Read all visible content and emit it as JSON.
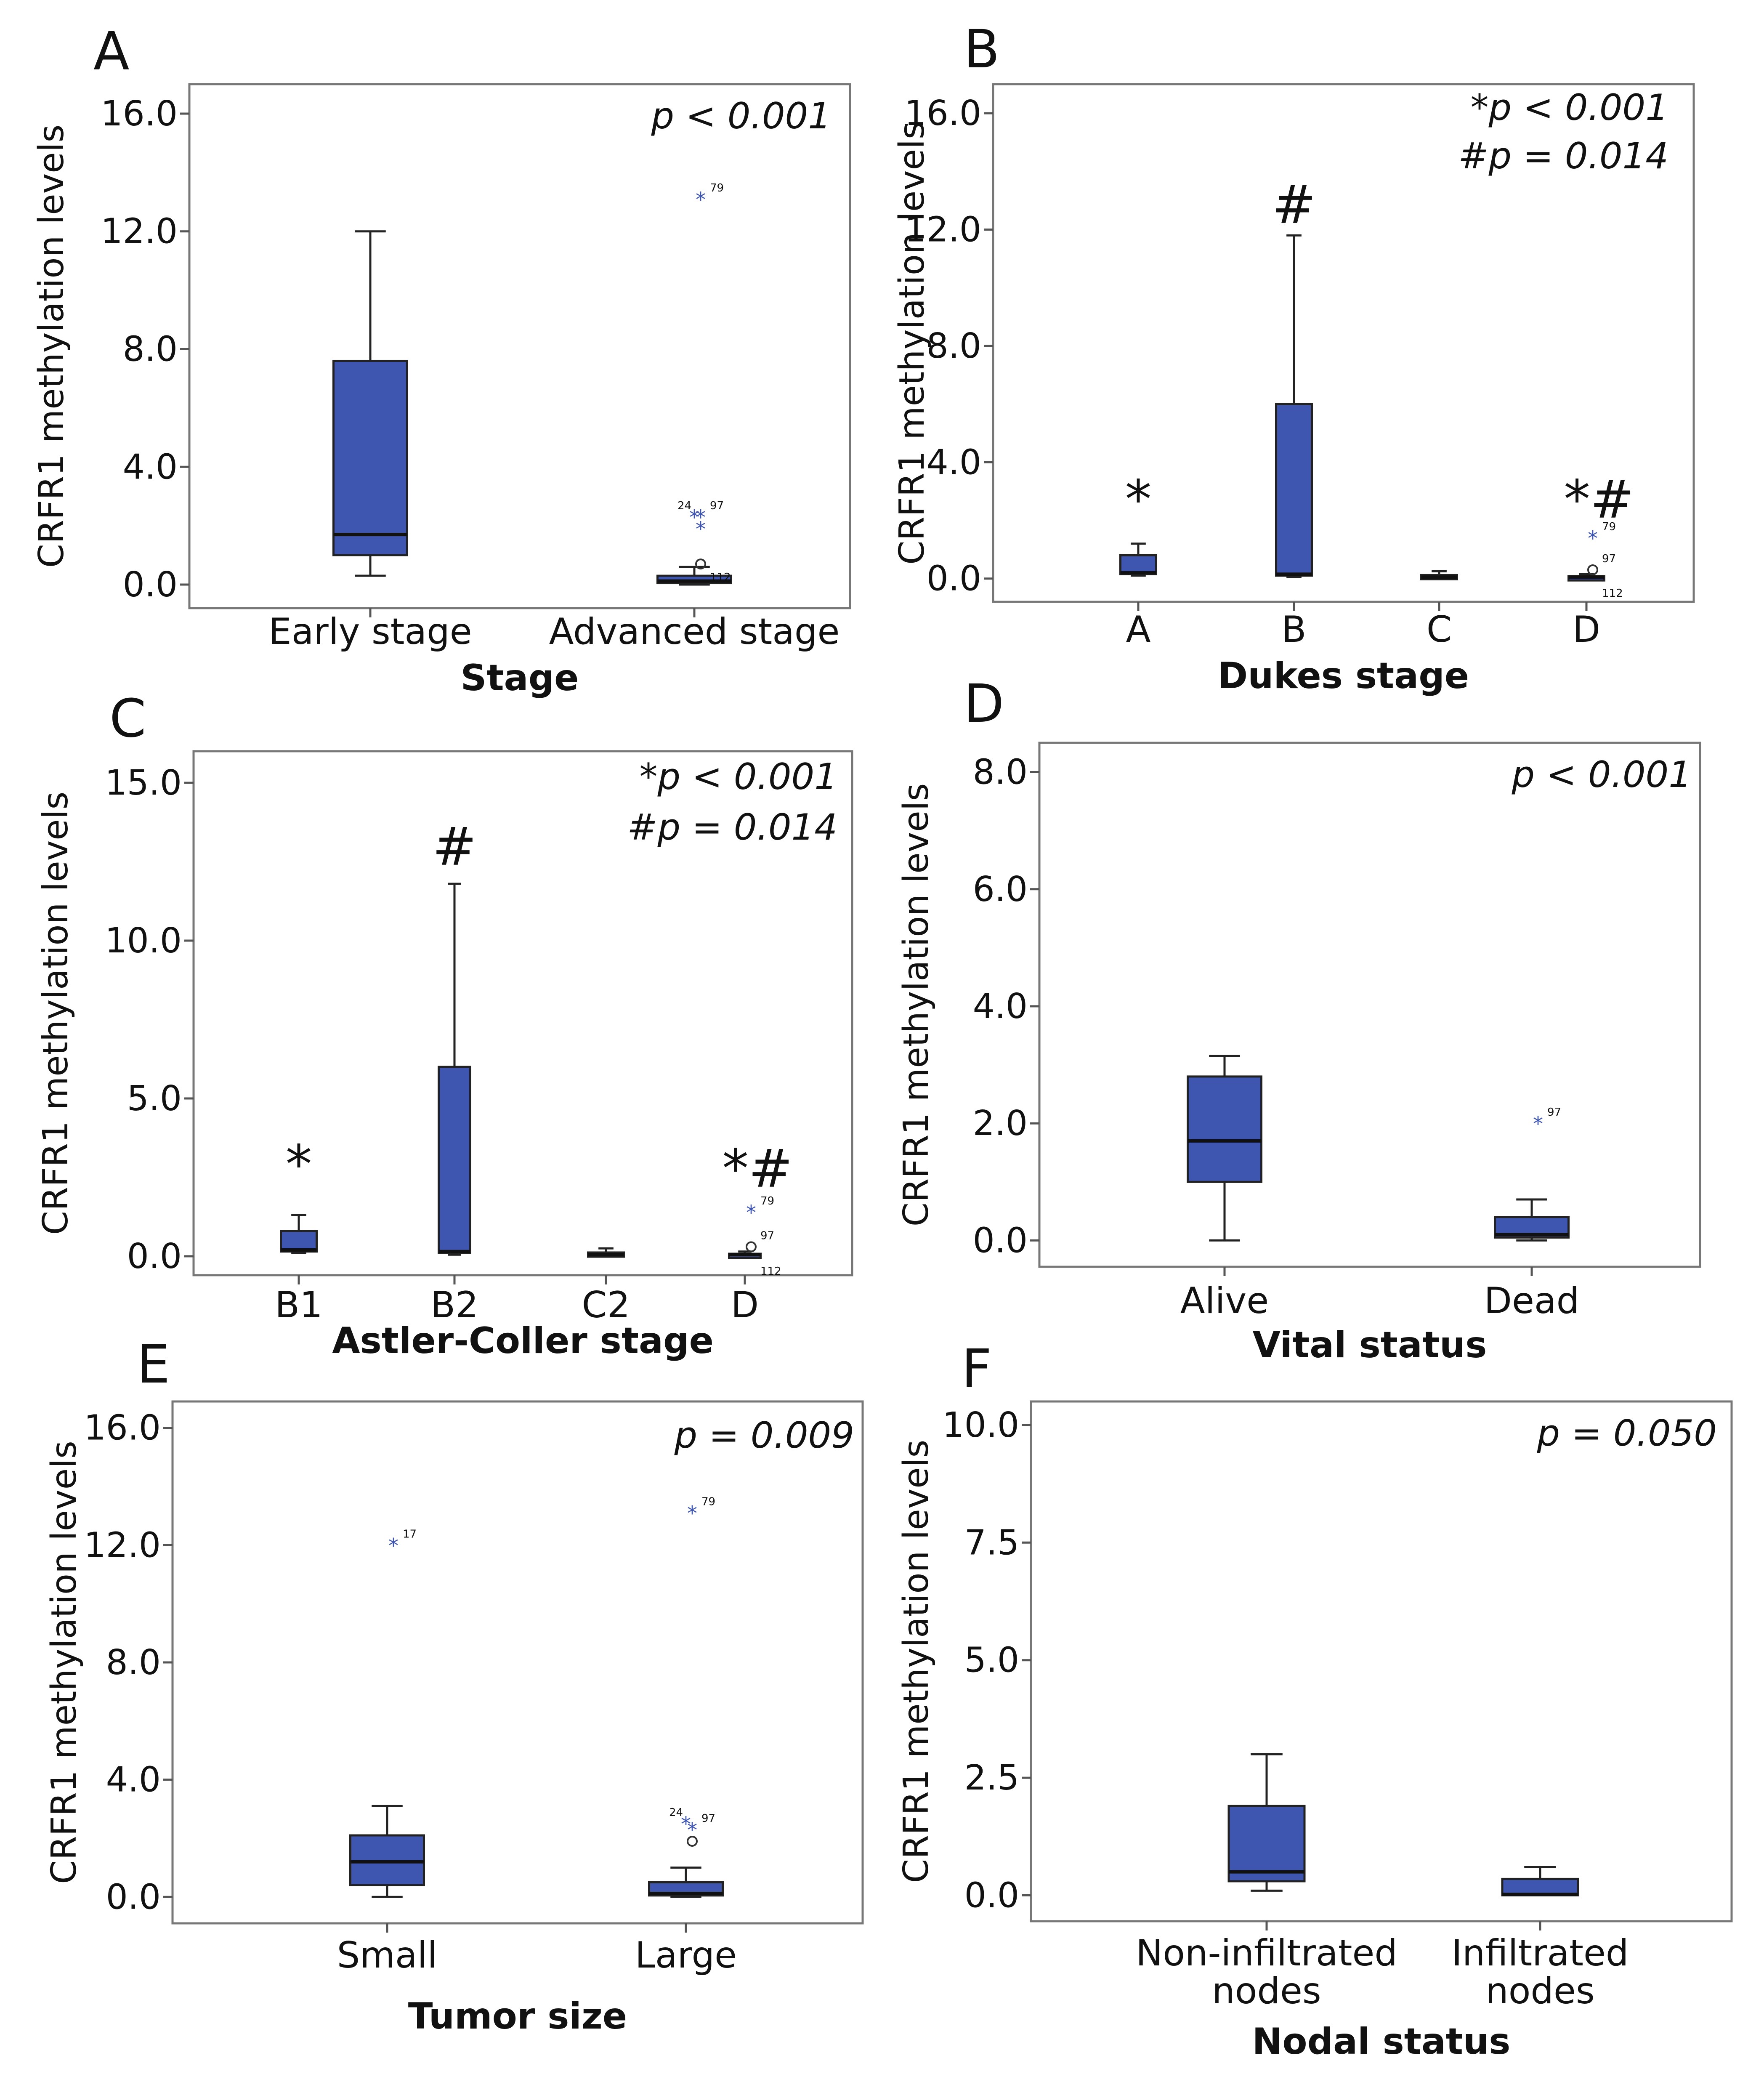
{
  "figure": {
    "y_axis_label": "CRFR1 methylation levels"
  },
  "chart_data": [
    {
      "panel": "A",
      "type": "box",
      "xlabel": "Stage",
      "ylabel": "CRFR1 methylation levels",
      "ylim": [
        -0.8,
        17.0
      ],
      "yticks": [
        "0.0",
        "4.0",
        "8.0",
        "12.0",
        "16.0"
      ],
      "ytick_values": [
        0,
        4,
        8,
        12,
        16
      ],
      "annotations": [
        {
          "text": "p < 0.001"
        }
      ],
      "categories": [
        "Early stage",
        "Advanced stage"
      ],
      "boxes": [
        {
          "category": "Early stage",
          "min": 0.3,
          "q1": 1.0,
          "median": 1.7,
          "q3": 7.6,
          "max": 12.0,
          "outliers": []
        },
        {
          "category": "Advanced stage",
          "min": 0.0,
          "q1": 0.05,
          "median": 0.12,
          "q3": 0.3,
          "max": 0.6,
          "outliers": [
            {
              "value": 13.1,
              "label": "79",
              "symbol": "*"
            },
            {
              "value": 2.3,
              "label": "24",
              "symbol": "*"
            },
            {
              "value": 2.3,
              "label": "97",
              "symbol": "*"
            },
            {
              "value": 1.9,
              "label": "",
              "symbol": "*"
            },
            {
              "value": 0.7,
              "label": "112",
              "symbol": "o"
            }
          ]
        }
      ]
    },
    {
      "panel": "B",
      "type": "box",
      "xlabel": "Dukes stage",
      "ylabel": "CRFR1 methylation levels",
      "ylim": [
        -0.8,
        17.0
      ],
      "yticks": [
        "0.0",
        "4.0",
        "8.0",
        "12.0",
        "16.0"
      ],
      "ytick_values": [
        0,
        4,
        8,
        12,
        16
      ],
      "annotations": [
        {
          "text": "*p < 0.001"
        },
        {
          "text": "#p = 0.014"
        }
      ],
      "categories": [
        "A",
        "B",
        "C",
        "D"
      ],
      "group_marks": [
        "*",
        "#",
        "",
        "*#"
      ],
      "boxes": [
        {
          "category": "A",
          "min": 0.1,
          "q1": 0.15,
          "median": 0.2,
          "q3": 0.8,
          "max": 1.2,
          "outliers": []
        },
        {
          "category": "B",
          "min": 0.05,
          "q1": 0.1,
          "median": 0.15,
          "q3": 6.0,
          "max": 11.8,
          "outliers": []
        },
        {
          "category": "C",
          "min": 0.0,
          "q1": 0.02,
          "median": 0.05,
          "q3": 0.12,
          "max": 0.25,
          "outliers": []
        },
        {
          "category": "D",
          "min": 0.0,
          "q1": 0.02,
          "median": 0.05,
          "q3": 0.08,
          "max": 0.15,
          "outliers": [
            {
              "value": 1.4,
              "label": "79",
              "symbol": "*"
            },
            {
              "value": 0.3,
              "label": "97",
              "symbol": "o"
            },
            {
              "value": -0.05,
              "label": "112",
              "symbol": ""
            }
          ]
        }
      ]
    },
    {
      "panel": "C",
      "type": "box",
      "xlabel": "Astler-Coller stage",
      "ylabel": "CRFR1 methylation levels",
      "ylim": [
        -0.6,
        16.0
      ],
      "yticks": [
        "0.0",
        "5.0",
        "10.0",
        "15.0"
      ],
      "ytick_values": [
        0,
        5,
        10,
        15
      ],
      "annotations": [
        {
          "text": "*p < 0.001"
        },
        {
          "text": "#p = 0.014"
        }
      ],
      "categories": [
        "B1",
        "B2",
        "C2",
        "D"
      ],
      "group_marks": [
        "*",
        "#",
        "",
        "*#"
      ],
      "boxes": [
        {
          "category": "B1",
          "min": 0.1,
          "q1": 0.15,
          "median": 0.2,
          "q3": 0.8,
          "max": 1.3,
          "outliers": []
        },
        {
          "category": "B2",
          "min": 0.05,
          "q1": 0.1,
          "median": 0.15,
          "q3": 6.0,
          "max": 11.8,
          "outliers": []
        },
        {
          "category": "C2",
          "min": 0.0,
          "q1": 0.02,
          "median": 0.05,
          "q3": 0.12,
          "max": 0.25,
          "outliers": []
        },
        {
          "category": "D",
          "min": 0.0,
          "q1": 0.02,
          "median": 0.05,
          "q3": 0.08,
          "max": 0.15,
          "outliers": [
            {
              "value": 1.4,
              "label": "79",
              "symbol": "*"
            },
            {
              "value": 0.3,
              "label": "97",
              "symbol": "o"
            },
            {
              "value": -0.05,
              "label": "112",
              "symbol": ""
            }
          ]
        }
      ]
    },
    {
      "panel": "D",
      "type": "box",
      "xlabel": "Vital status",
      "ylabel": "CRFR1 methylation levels",
      "ylim": [
        -0.45,
        8.5
      ],
      "yticks": [
        "0.0",
        "2.0",
        "4.0",
        "6.0",
        "8.0"
      ],
      "ytick_values": [
        0,
        2,
        4,
        6,
        8
      ],
      "annotations": [
        {
          "text": "p < 0.001"
        }
      ],
      "categories": [
        "Alive",
        "Dead"
      ],
      "boxes": [
        {
          "category": "Alive",
          "min": 0.0,
          "q1": 1.0,
          "median": 1.7,
          "q3": 2.8,
          "max": 3.15,
          "outliers": []
        },
        {
          "category": "Dead",
          "min": 0.0,
          "q1": 0.05,
          "median": 0.1,
          "q3": 0.4,
          "max": 0.7,
          "outliers": [
            {
              "value": 2.0,
              "label": "97",
              "symbol": "*"
            }
          ]
        }
      ]
    },
    {
      "panel": "E",
      "type": "box",
      "xlabel": "Tumor size",
      "ylabel": "CRFR1 methylation levels",
      "ylim": [
        -0.9,
        16.9
      ],
      "yticks": [
        "0.0",
        "4.0",
        "8.0",
        "12.0",
        "16.0"
      ],
      "ytick_values": [
        0,
        4,
        8,
        12,
        16
      ],
      "annotations": [
        {
          "text": "p = 0.009"
        }
      ],
      "categories": [
        "Small",
        "Large"
      ],
      "boxes": [
        {
          "category": "Small",
          "min": 0.0,
          "q1": 0.4,
          "median": 1.2,
          "q3": 2.1,
          "max": 3.1,
          "outliers": [
            {
              "value": 12.0,
              "label": "17",
              "symbol": "*"
            }
          ]
        },
        {
          "category": "Large",
          "min": 0.0,
          "q1": 0.05,
          "median": 0.12,
          "q3": 0.5,
          "max": 1.0,
          "outliers": [
            {
              "value": 13.1,
              "label": "79",
              "symbol": "*"
            },
            {
              "value": 2.5,
              "label": "24",
              "symbol": "*"
            },
            {
              "value": 2.3,
              "label": "97",
              "symbol": "*"
            },
            {
              "value": 1.9,
              "label": "",
              "symbol": "o"
            }
          ]
        }
      ]
    },
    {
      "panel": "F",
      "type": "box",
      "xlabel": "Nodal status",
      "ylabel": "CRFR1 methylation levels",
      "ylim": [
        -0.55,
        10.5
      ],
      "yticks": [
        "0.0",
        "2.5",
        "5.0",
        "7.5",
        "10.0"
      ],
      "ytick_values": [
        0,
        2.5,
        5,
        7.5,
        10
      ],
      "annotations": [
        {
          "text": "p = 0.050"
        }
      ],
      "categories": [
        "Non-infiltrated nodes",
        "Infiltrated nodes"
      ],
      "category_lines": [
        [
          "Non-infiltrated",
          "nodes"
        ],
        [
          "Infiltrated",
          "nodes"
        ]
      ],
      "boxes": [
        {
          "category": "Non-infiltrated nodes",
          "min": 0.1,
          "q1": 0.3,
          "median": 0.5,
          "q3": 1.9,
          "max": 3.0,
          "outliers": []
        },
        {
          "category": "Infiltrated nodes",
          "min": 0.0,
          "q1": 0.0,
          "median": 0.02,
          "q3": 0.35,
          "max": 0.6,
          "outliers": []
        }
      ]
    }
  ]
}
